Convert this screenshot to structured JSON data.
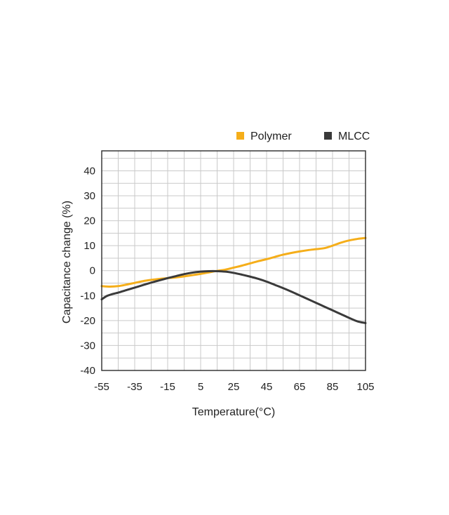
{
  "chart_data": {
    "type": "line",
    "title": "",
    "xlabel": "Temperature(°C)",
    "ylabel": "Capacitance change (%)",
    "xlim": [
      -55,
      105
    ],
    "ylim": [
      -40,
      48
    ],
    "x_ticks": [
      -55,
      -35,
      -15,
      5,
      25,
      45,
      65,
      85,
      105
    ],
    "y_ticks": [
      -40,
      -30,
      -20,
      -10,
      0,
      10,
      20,
      30,
      40
    ],
    "grid": true,
    "legend_position": "top-right",
    "series": [
      {
        "name": "Polymer",
        "color": "#f5ae1a",
        "x": [
          -55,
          -50,
          -45,
          -40,
          -35,
          -30,
          -25,
          -20,
          -15,
          -10,
          -5,
          0,
          5,
          10,
          15,
          20,
          25,
          30,
          35,
          40,
          45,
          50,
          55,
          60,
          65,
          70,
          75,
          80,
          85,
          90,
          95,
          100,
          105
        ],
        "y": [
          -6.2,
          -6.4,
          -6.2,
          -5.6,
          -4.9,
          -4.2,
          -3.7,
          -3.3,
          -3.0,
          -2.7,
          -2.3,
          -1.8,
          -1.3,
          -0.7,
          -0.1,
          0.4,
          1.2,
          2.0,
          2.9,
          3.8,
          4.6,
          5.5,
          6.4,
          7.1,
          7.7,
          8.2,
          8.6,
          9.0,
          10.0,
          11.2,
          12.1,
          12.7,
          13.1
        ]
      },
      {
        "name": "MLCC",
        "color": "#3a3a3a",
        "x": [
          -55,
          -52,
          -48,
          -45,
          -40,
          -35,
          -30,
          -25,
          -20,
          -15,
          -10,
          -5,
          0,
          5,
          10,
          15,
          20,
          25,
          30,
          35,
          40,
          45,
          50,
          55,
          60,
          65,
          70,
          75,
          80,
          85,
          90,
          95,
          100,
          105
        ],
        "y": [
          -11.5,
          -10.2,
          -9.3,
          -8.8,
          -7.8,
          -6.8,
          -5.8,
          -4.8,
          -3.9,
          -3.0,
          -2.2,
          -1.4,
          -0.8,
          -0.4,
          -0.2,
          -0.2,
          -0.4,
          -0.9,
          -1.6,
          -2.4,
          -3.3,
          -4.4,
          -5.7,
          -7.0,
          -8.4,
          -9.9,
          -11.4,
          -12.9,
          -14.4,
          -15.9,
          -17.4,
          -18.9,
          -20.3,
          -21.0
        ]
      }
    ]
  }
}
